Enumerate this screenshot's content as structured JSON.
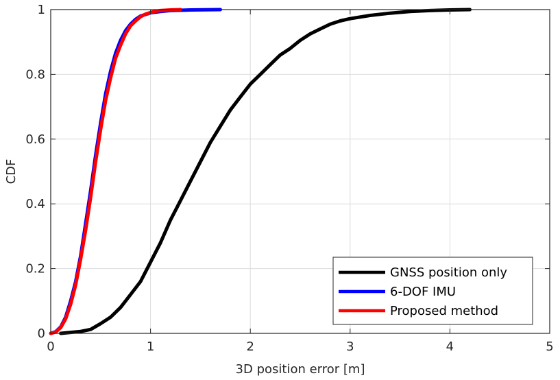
{
  "chart_data": {
    "type": "line",
    "title": "",
    "xlabel": "3D position error [m]",
    "ylabel": "CDF",
    "xlim": [
      0,
      5
    ],
    "ylim": [
      0,
      1
    ],
    "grid": true,
    "legend_position": "bottom-right",
    "x_ticks": [
      0,
      1,
      2,
      3,
      4,
      5
    ],
    "x_tick_labels": [
      "0",
      "1",
      "2",
      "3",
      "4",
      "5"
    ],
    "y_ticks": [
      0,
      0.2,
      0.4,
      0.6,
      0.8,
      1
    ],
    "y_tick_labels": [
      "0",
      "0.2",
      "0.4",
      "0.6",
      "0.8",
      "1"
    ],
    "series": [
      {
        "name": "GNSS position only",
        "color": "#000000",
        "x": [
          0.1,
          0.2,
          0.3,
          0.4,
          0.5,
          0.6,
          0.7,
          0.8,
          0.9,
          1.0,
          1.1,
          1.2,
          1.3,
          1.4,
          1.5,
          1.6,
          1.7,
          1.8,
          1.9,
          2.0,
          2.1,
          2.2,
          2.3,
          2.4,
          2.5,
          2.6,
          2.7,
          2.8,
          2.9,
          3.0,
          3.2,
          3.4,
          3.6,
          3.8,
          4.0,
          4.2
        ],
        "y": [
          0.0,
          0.003,
          0.006,
          0.012,
          0.03,
          0.05,
          0.08,
          0.12,
          0.16,
          0.22,
          0.28,
          0.35,
          0.41,
          0.47,
          0.53,
          0.59,
          0.64,
          0.69,
          0.73,
          0.77,
          0.8,
          0.83,
          0.86,
          0.88,
          0.905,
          0.925,
          0.94,
          0.955,
          0.965,
          0.972,
          0.982,
          0.989,
          0.994,
          0.997,
          0.999,
          1.0
        ]
      },
      {
        "name": "6-DOF IMU",
        "color": "#0000ff",
        "x": [
          0.0,
          0.05,
          0.1,
          0.15,
          0.2,
          0.25,
          0.3,
          0.35,
          0.4,
          0.45,
          0.5,
          0.55,
          0.6,
          0.65,
          0.7,
          0.75,
          0.8,
          0.85,
          0.9,
          0.95,
          1.0,
          1.1,
          1.2,
          1.4,
          1.7
        ],
        "y": [
          0.0,
          0.005,
          0.02,
          0.05,
          0.1,
          0.16,
          0.24,
          0.34,
          0.44,
          0.55,
          0.65,
          0.74,
          0.81,
          0.865,
          0.905,
          0.935,
          0.955,
          0.97,
          0.98,
          0.985,
          0.99,
          0.994,
          0.997,
          0.999,
          1.0
        ]
      },
      {
        "name": "Proposed method",
        "color": "#ff0000",
        "x": [
          0.0,
          0.05,
          0.1,
          0.15,
          0.2,
          0.25,
          0.3,
          0.35,
          0.4,
          0.45,
          0.5,
          0.55,
          0.6,
          0.65,
          0.7,
          0.75,
          0.8,
          0.85,
          0.9,
          0.95,
          1.0,
          1.05,
          1.1,
          1.2,
          1.3
        ],
        "y": [
          0.0,
          0.004,
          0.018,
          0.045,
          0.09,
          0.15,
          0.23,
          0.32,
          0.42,
          0.53,
          0.63,
          0.72,
          0.79,
          0.85,
          0.89,
          0.925,
          0.95,
          0.965,
          0.978,
          0.986,
          0.991,
          0.995,
          0.997,
          0.999,
          1.0
        ]
      }
    ]
  }
}
